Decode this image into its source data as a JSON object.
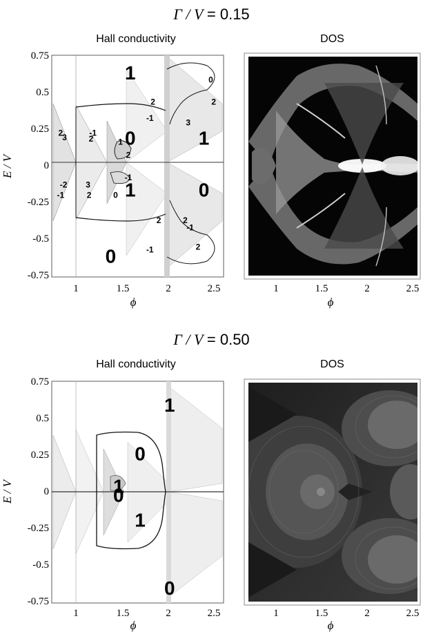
{
  "panels": [
    {
      "title_prefix": "Γ / V",
      "title_eq": "= 0.15",
      "hall_title": "Hall conductivity",
      "dos_title": "DOS"
    },
    {
      "title_prefix": "Γ / V",
      "title_eq": "= 0.50",
      "hall_title": "Hall conductivity",
      "dos_title": "DOS"
    }
  ],
  "axes": {
    "ylabel": "E / V",
    "xlabel": "ϕ",
    "yticks": [
      "0.75",
      "0.5",
      "0.25",
      "0",
      "-0.25",
      "-0.5",
      "-0.75"
    ],
    "xticks": [
      "1",
      "1.5",
      "2",
      "2.5"
    ]
  },
  "chart_data": [
    {
      "type": "heatmap",
      "title": "Hall conductivity",
      "xlabel": "ϕ",
      "ylabel": "E / V",
      "xlim": [
        0.75,
        2.5
      ],
      "ylim": [
        -0.75,
        0.75
      ],
      "region_labels": [
        {
          "text": "1",
          "x": 1.55,
          "y": 0.62
        },
        {
          "text": "0",
          "x": 1.55,
          "y": 0.18
        },
        {
          "text": "1",
          "x": 2.3,
          "y": 0.18
        },
        {
          "text": "1",
          "x": 1.55,
          "y": -0.17
        },
        {
          "text": "0",
          "x": 2.3,
          "y": -0.17
        },
        {
          "text": "0",
          "x": 1.35,
          "y": -0.62
        },
        {
          "text": "2",
          "x": 1.78,
          "y": 0.43
        },
        {
          "text": "2",
          "x": 2.4,
          "y": 0.43
        },
        {
          "text": "0",
          "x": 2.37,
          "y": 0.58
        },
        {
          "text": "-1",
          "x": 1.75,
          "y": 0.32
        },
        {
          "text": "3",
          "x": 2.14,
          "y": 0.29
        },
        {
          "text": "2",
          "x": 0.84,
          "y": 0.22
        },
        {
          "text": "3",
          "x": 0.88,
          "y": 0.19
        },
        {
          "text": "-1",
          "x": 1.17,
          "y": 0.22
        },
        {
          "text": "2",
          "x": 1.15,
          "y": 0.18
        },
        {
          "text": "1",
          "x": 1.45,
          "y": 0.16
        },
        {
          "text": "2",
          "x": 1.53,
          "y": 0.07
        },
        {
          "text": "-1",
          "x": 1.53,
          "y": -0.08
        },
        {
          "text": "-2",
          "x": 0.87,
          "y": -0.13
        },
        {
          "text": "3",
          "x": 1.12,
          "y": -0.13
        },
        {
          "text": "-1",
          "x": 0.84,
          "y": -0.2
        },
        {
          "text": "2",
          "x": 1.13,
          "y": -0.2
        },
        {
          "text": "0",
          "x": 1.4,
          "y": -0.2
        },
        {
          "text": "2",
          "x": 1.84,
          "y": -0.37
        },
        {
          "text": "2",
          "x": 2.11,
          "y": -0.37
        },
        {
          "text": "-1",
          "x": 2.16,
          "y": -0.42
        },
        {
          "text": "-1",
          "x": 1.75,
          "y": -0.57
        },
        {
          "text": "2",
          "x": 2.24,
          "y": -0.55
        }
      ]
    },
    {
      "type": "heatmap",
      "title": "DOS",
      "xlabel": "ϕ",
      "xlim": [
        0.75,
        2.5
      ],
      "ylim": [
        -0.75,
        0.75
      ]
    },
    {
      "type": "heatmap",
      "title": "Hall conductivity",
      "xlabel": "ϕ",
      "ylabel": "E / V",
      "xlim": [
        0.75,
        2.5
      ],
      "ylim": [
        -0.75,
        0.75
      ],
      "region_labels": [
        {
          "text": "1",
          "x": 1.95,
          "y": 0.58
        },
        {
          "text": "0",
          "x": 1.65,
          "y": 0.25
        },
        {
          "text": "1",
          "x": 1.43,
          "y": 0.03
        },
        {
          "text": "0",
          "x": 1.43,
          "y": -0.03
        },
        {
          "text": "1",
          "x": 1.65,
          "y": -0.2
        },
        {
          "text": "0",
          "x": 1.95,
          "y": -0.66
        }
      ]
    },
    {
      "type": "heatmap",
      "title": "DOS",
      "xlabel": "ϕ",
      "xlim": [
        0.75,
        2.5
      ],
      "ylim": [
        -0.75,
        0.75
      ]
    }
  ]
}
